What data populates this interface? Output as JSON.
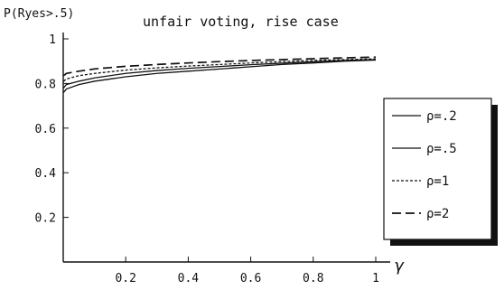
{
  "chart_data": {
    "type": "line",
    "ylabel": "P(Ryes>.5)",
    "title": "unfair voting, rise case",
    "xlabel": "γ",
    "xlim": [
      0,
      1
    ],
    "ylim": [
      0,
      1
    ],
    "x_ticks": [
      0.2,
      0.4,
      0.6,
      0.8,
      1
    ],
    "x_tick_labels": [
      "0.2",
      "0.4",
      "0.6",
      "0.8",
      "1"
    ],
    "y_ticks": [
      0.2,
      0.4,
      0.6,
      0.8,
      1
    ],
    "y_tick_labels": [
      "0.2",
      "0.4",
      "0.6",
      "0.8",
      "1"
    ],
    "grid": false,
    "legend_position": "right",
    "series": [
      {
        "name": "ρ=.2",
        "style": "solid",
        "x": [
          0.001,
          0.01,
          0.05,
          0.1,
          0.2,
          0.3,
          0.4,
          0.5,
          0.6,
          0.7,
          0.8,
          0.9,
          1.0
        ],
        "values": [
          0.76,
          0.775,
          0.795,
          0.81,
          0.83,
          0.845,
          0.855,
          0.865,
          0.875,
          0.885,
          0.892,
          0.9,
          0.905
        ]
      },
      {
        "name": "ρ=.5",
        "style": "solid",
        "x": [
          0.001,
          0.01,
          0.05,
          0.1,
          0.2,
          0.3,
          0.4,
          0.5,
          0.6,
          0.7,
          0.8,
          0.9,
          1.0
        ],
        "values": [
          0.78,
          0.795,
          0.81,
          0.825,
          0.845,
          0.858,
          0.868,
          0.876,
          0.884,
          0.891,
          0.897,
          0.903,
          0.907
        ]
      },
      {
        "name": "ρ=1",
        "style": "dotted",
        "x": [
          0.001,
          0.01,
          0.05,
          0.1,
          0.2,
          0.3,
          0.4,
          0.5,
          0.6,
          0.7,
          0.8,
          0.9,
          1.0
        ],
        "values": [
          0.81,
          0.82,
          0.835,
          0.845,
          0.86,
          0.87,
          0.878,
          0.885,
          0.892,
          0.898,
          0.903,
          0.907,
          0.91
        ]
      },
      {
        "name": "ρ=2",
        "style": "dashed",
        "x": [
          0.001,
          0.01,
          0.05,
          0.1,
          0.2,
          0.3,
          0.4,
          0.5,
          0.6,
          0.7,
          0.8,
          0.9,
          1.0
        ],
        "values": [
          0.835,
          0.845,
          0.855,
          0.865,
          0.877,
          0.885,
          0.892,
          0.898,
          0.903,
          0.907,
          0.911,
          0.915,
          0.918
        ]
      }
    ]
  }
}
